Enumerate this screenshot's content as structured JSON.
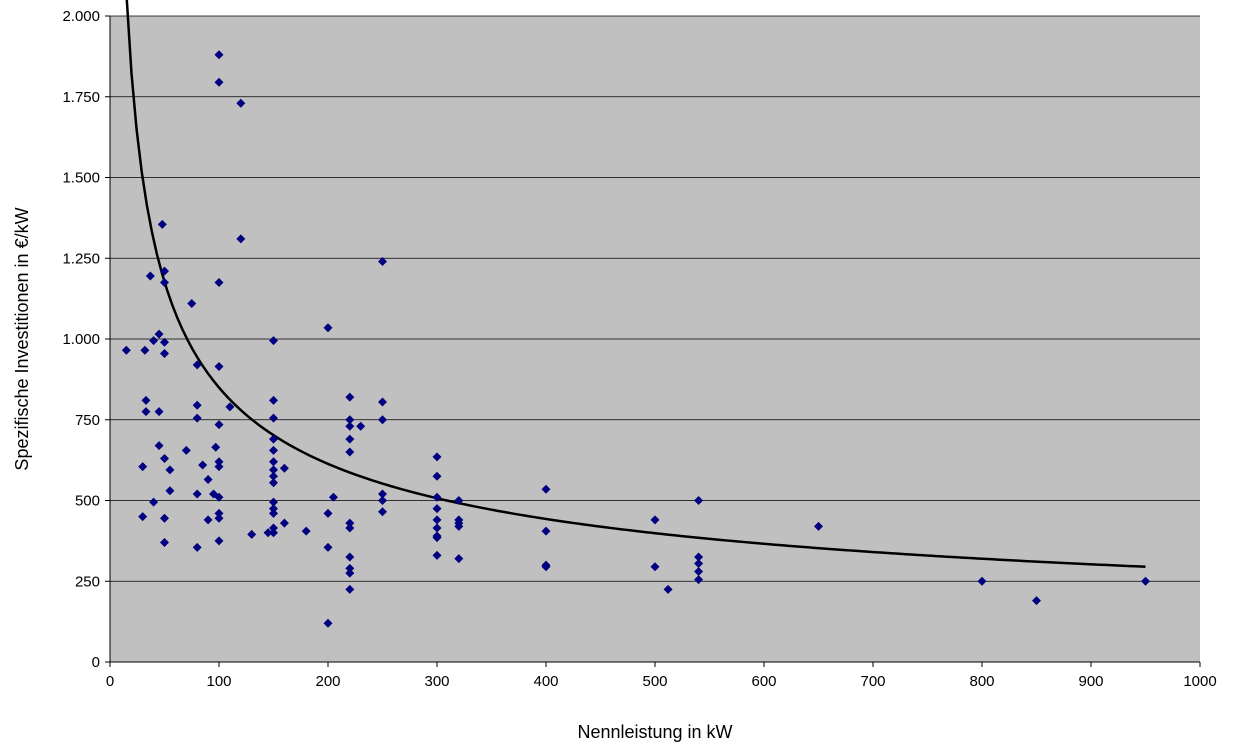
{
  "chart_data": {
    "type": "scatter",
    "title": "",
    "xlabel": "Nennleistung in kW",
    "ylabel": "Spezifische Investitionen in €/kW",
    "xlim": [
      0,
      1000
    ],
    "ylim": [
      0,
      2000
    ],
    "x_ticks": [
      0,
      100,
      200,
      300,
      400,
      500,
      600,
      700,
      800,
      900,
      1000
    ],
    "y_ticks": [
      0,
      250,
      500,
      750,
      1000,
      1250,
      1500,
      1750,
      2000
    ],
    "x_tick_labels": [
      "0",
      "100",
      "200",
      "300",
      "400",
      "500",
      "600",
      "700",
      "800",
      "900",
      "1000"
    ],
    "y_tick_labels": [
      "0",
      "250",
      "500",
      "750",
      "1.000",
      "1.250",
      "1.500",
      "1.750",
      "2.000"
    ],
    "grid": "horizontal",
    "legend": "none",
    "colors": {
      "plot_bg": "#c0c0c0",
      "marker": "#000080",
      "trend": "#000000",
      "gridline": "#000000"
    },
    "series": [
      {
        "marker": "diamond",
        "points": [
          [
            15,
            965
          ],
          [
            30,
            605
          ],
          [
            30,
            450
          ],
          [
            32,
            965
          ],
          [
            33,
            810
          ],
          [
            33,
            775
          ],
          [
            37,
            1195
          ],
          [
            40,
            995
          ],
          [
            40,
            495
          ],
          [
            45,
            1015
          ],
          [
            45,
            775
          ],
          [
            45,
            670
          ],
          [
            48,
            1355
          ],
          [
            50,
            1210
          ],
          [
            50,
            1175
          ],
          [
            50,
            990
          ],
          [
            50,
            955
          ],
          [
            50,
            630
          ],
          [
            50,
            445
          ],
          [
            50,
            370
          ],
          [
            55,
            595
          ],
          [
            55,
            530
          ],
          [
            70,
            655
          ],
          [
            75,
            1110
          ],
          [
            80,
            920
          ],
          [
            80,
            795
          ],
          [
            80,
            755
          ],
          [
            80,
            520
          ],
          [
            80,
            355
          ],
          [
            85,
            610
          ],
          [
            90,
            565
          ],
          [
            90,
            440
          ],
          [
            95,
            520
          ],
          [
            97,
            665
          ],
          [
            100,
            1880
          ],
          [
            100,
            1795
          ],
          [
            100,
            1175
          ],
          [
            100,
            915
          ],
          [
            100,
            735
          ],
          [
            100,
            620
          ],
          [
            100,
            605
          ],
          [
            100,
            510
          ],
          [
            100,
            460
          ],
          [
            100,
            445
          ],
          [
            100,
            375
          ],
          [
            110,
            790
          ],
          [
            120,
            1730
          ],
          [
            120,
            1310
          ],
          [
            130,
            395
          ],
          [
            145,
            400
          ],
          [
            150,
            995
          ],
          [
            150,
            810
          ],
          [
            150,
            755
          ],
          [
            150,
            690
          ],
          [
            150,
            655
          ],
          [
            150,
            620
          ],
          [
            150,
            595
          ],
          [
            150,
            575
          ],
          [
            150,
            555
          ],
          [
            150,
            495
          ],
          [
            150,
            475
          ],
          [
            150,
            460
          ],
          [
            150,
            415
          ],
          [
            150,
            400
          ],
          [
            160,
            600
          ],
          [
            160,
            430
          ],
          [
            180,
            405
          ],
          [
            200,
            1035
          ],
          [
            200,
            460
          ],
          [
            200,
            355
          ],
          [
            200,
            120
          ],
          [
            205,
            510
          ],
          [
            220,
            820
          ],
          [
            220,
            750
          ],
          [
            220,
            730
          ],
          [
            220,
            690
          ],
          [
            220,
            650
          ],
          [
            220,
            430
          ],
          [
            220,
            415
          ],
          [
            220,
            325
          ],
          [
            220,
            290
          ],
          [
            220,
            275
          ],
          [
            220,
            225
          ],
          [
            230,
            730
          ],
          [
            250,
            1240
          ],
          [
            250,
            805
          ],
          [
            250,
            750
          ],
          [
            250,
            520
          ],
          [
            250,
            500
          ],
          [
            250,
            465
          ],
          [
            300,
            635
          ],
          [
            300,
            575
          ],
          [
            300,
            510
          ],
          [
            300,
            475
          ],
          [
            300,
            440
          ],
          [
            300,
            415
          ],
          [
            300,
            390
          ],
          [
            300,
            385
          ],
          [
            300,
            330
          ],
          [
            320,
            500
          ],
          [
            320,
            440
          ],
          [
            320,
            430
          ],
          [
            320,
            420
          ],
          [
            320,
            320
          ],
          [
            400,
            535
          ],
          [
            400,
            405
          ],
          [
            400,
            300
          ],
          [
            400,
            295
          ],
          [
            500,
            440
          ],
          [
            500,
            295
          ],
          [
            512,
            225
          ],
          [
            540,
            500
          ],
          [
            540,
            325
          ],
          [
            540,
            305
          ],
          [
            540,
            280
          ],
          [
            540,
            255
          ],
          [
            650,
            420
          ],
          [
            800,
            250
          ],
          [
            850,
            190
          ],
          [
            950,
            250
          ]
        ]
      }
    ],
    "trendline": {
      "type": "power",
      "a": 7400,
      "b": -0.47,
      "x_start": 15,
      "x_end": 950
    }
  }
}
